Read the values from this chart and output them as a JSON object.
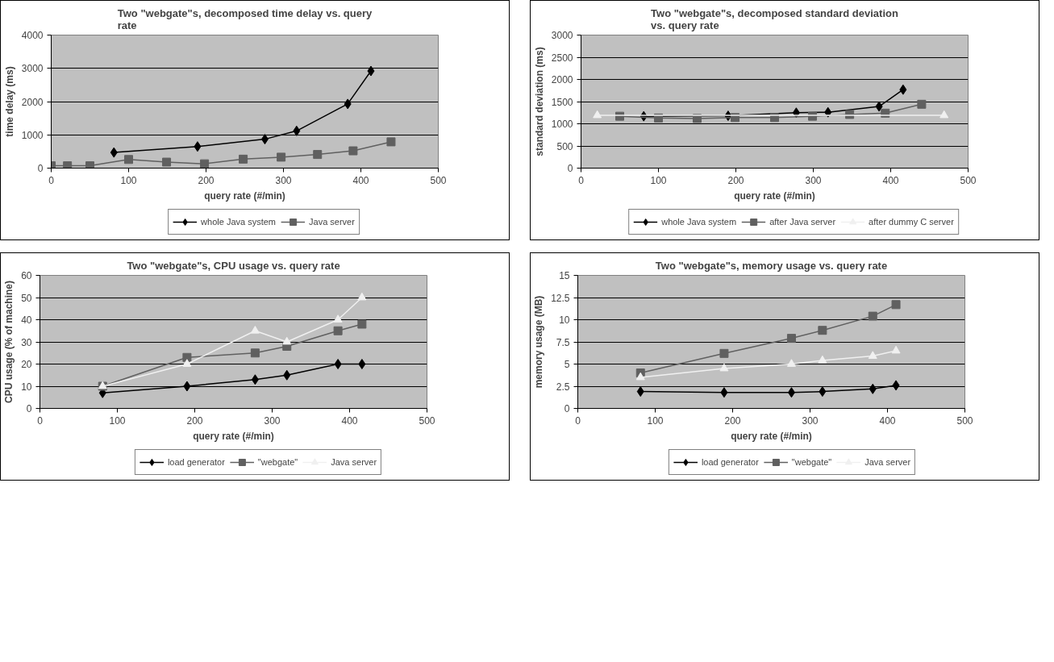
{
  "chart_data": [
    {
      "type": "line",
      "title": "Two \"webgate\"s, decomposed time delay vs. query rate",
      "xlabel": "query rate (#/min)",
      "ylabel": "time delay (ms)",
      "xlim": [
        0,
        500
      ],
      "xticks": [
        0,
        100,
        200,
        300,
        400,
        500
      ],
      "ylim": [
        0,
        4000
      ],
      "yticks": [
        0,
        1000,
        2000,
        3000,
        4000
      ],
      "grid": "y",
      "legend": "bottom",
      "series": [
        {
          "name": "whole Java system",
          "color": "#000000",
          "marker": "diamond",
          "x": [
            81,
            189,
            276,
            317,
            383,
            413
          ],
          "values": [
            470,
            650,
            870,
            1120,
            1930,
            2920
          ]
        },
        {
          "name": "Java server",
          "color": "#606060",
          "marker": "square",
          "x": [
            0,
            21,
            50,
            100,
            149,
            198,
            248,
            297,
            344,
            390,
            439
          ],
          "values": [
            70,
            70,
            70,
            260,
            180,
            130,
            270,
            330,
            410,
            520,
            790
          ]
        }
      ]
    },
    {
      "type": "line",
      "title": "Two \"webgate\"s, decomposed standard deviation vs. query rate",
      "xlabel": "query rate (#/min)",
      "ylabel": "standard deviation (ms)",
      "xlim": [
        0,
        500
      ],
      "xticks": [
        0,
        100,
        200,
        300,
        400,
        500
      ],
      "ylim": [
        0,
        3000
      ],
      "yticks": [
        0,
        500,
        1000,
        1500,
        2000,
        2500,
        3000
      ],
      "grid": "y",
      "legend": "bottom",
      "series": [
        {
          "name": "whole Java system",
          "color": "#000000",
          "marker": "diamond",
          "x": [
            81,
            190,
            278,
            319,
            385,
            416
          ],
          "values": [
            1170,
            1180,
            1250,
            1260,
            1390,
            1770
          ]
        },
        {
          "name": "after Java server",
          "color": "#606060",
          "marker": "square",
          "x": [
            50,
            100,
            150,
            199,
            250,
            299,
            347,
            393,
            440
          ],
          "values": [
            1170,
            1130,
            1120,
            1140,
            1140,
            1170,
            1210,
            1240,
            1440
          ]
        },
        {
          "name": "after dummy C server",
          "color": "#f0f0f0",
          "marker": "triangle",
          "x": [
            21,
            469
          ],
          "values": [
            1190,
            1190
          ]
        }
      ]
    },
    {
      "type": "line",
      "title": "Two \"webgate\"s, CPU usage vs. query rate",
      "xlabel": "query rate (#/min)",
      "ylabel": "CPU usage (% of machine)",
      "xlim": [
        0,
        500
      ],
      "xticks": [
        0,
        100,
        200,
        300,
        400,
        500
      ],
      "ylim": [
        0,
        60
      ],
      "yticks": [
        0,
        10,
        20,
        30,
        40,
        50,
        60
      ],
      "grid": "y",
      "legend": "bottom",
      "series": [
        {
          "name": "load generator",
          "color": "#000000",
          "marker": "diamond",
          "x": [
            81,
            190,
            278,
            319,
            385,
            416
          ],
          "values": [
            7,
            10,
            13,
            15,
            20,
            20
          ]
        },
        {
          "name": "\"webgate\"",
          "color": "#606060",
          "marker": "square",
          "x": [
            81,
            190,
            278,
            319,
            385,
            416
          ],
          "values": [
            10,
            23,
            25,
            28,
            35,
            38
          ]
        },
        {
          "name": "Java server",
          "color": "#f0f0f0",
          "marker": "triangle",
          "x": [
            81,
            190,
            278,
            319,
            385,
            416
          ],
          "values": [
            10,
            20,
            35,
            30,
            40,
            50
          ]
        }
      ]
    },
    {
      "type": "line",
      "title": "Two \"webgate\"s, memory usage vs. query rate",
      "xlabel": "query rate (#/min)",
      "ylabel": "memory usage (MB)",
      "xlim": [
        0,
        500
      ],
      "xticks": [
        0,
        100,
        200,
        300,
        400,
        500
      ],
      "ylim": [
        0,
        15
      ],
      "yticks": [
        0,
        2.5,
        5,
        7.5,
        10,
        12.5,
        15
      ],
      "grid": "y",
      "legend": "bottom",
      "series": [
        {
          "name": "load generator",
          "color": "#000000",
          "marker": "diamond",
          "x": [
            81,
            189,
            276,
            316,
            381,
            411
          ],
          "values": [
            1.9,
            1.8,
            1.8,
            1.9,
            2.2,
            2.6
          ]
        },
        {
          "name": "\"webgate\"",
          "color": "#606060",
          "marker": "square",
          "x": [
            81,
            189,
            276,
            316,
            381,
            411
          ],
          "values": [
            4,
            6.2,
            7.9,
            8.8,
            10.4,
            11.7
          ]
        },
        {
          "name": "Java server",
          "color": "#f0f0f0",
          "marker": "triangle",
          "x": [
            81,
            189,
            276,
            316,
            381,
            411
          ],
          "values": [
            3.5,
            4.5,
            5,
            5.4,
            5.9,
            6.5
          ]
        }
      ]
    }
  ]
}
